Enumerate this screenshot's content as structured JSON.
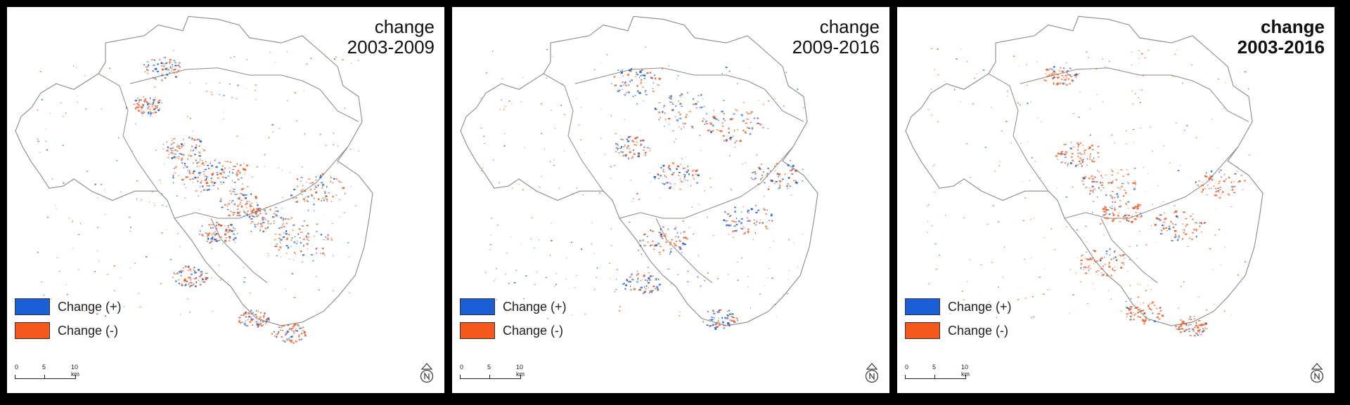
{
  "panels": [
    {
      "title_line1": "change",
      "title_line2": "2003-2009",
      "bold": false,
      "legend": [
        {
          "label": "Change (+)",
          "color": "#1a5fd6"
        },
        {
          "label": "Change (-)",
          "color": "#f4581d"
        }
      ],
      "scale": {
        "t0": "0",
        "t5": "5",
        "t10": "10 km"
      }
    },
    {
      "title_line1": "change",
      "title_line2": "2009-2016",
      "bold": false,
      "legend": [
        {
          "label": "Change (+)",
          "color": "#1a5fd6"
        },
        {
          "label": "Change (-)",
          "color": "#f4581d"
        }
      ],
      "scale": {
        "t0": "0",
        "t5": "5",
        "t10": "10 km"
      }
    },
    {
      "title_line1": "change",
      "title_line2": "2003-2016",
      "bold": true,
      "legend": [
        {
          "label": "Change (+)",
          "color": "#1a5fd6"
        },
        {
          "label": "Change (-)",
          "color": "#f4581d"
        }
      ],
      "scale": {
        "t0": "0",
        "t5": "5",
        "t10": "10 km"
      }
    }
  ],
  "colors": {
    "positive": "#1a5fd6",
    "negative": "#f4581d",
    "boundary": "#8a8a8a",
    "frame": "#000000"
  },
  "icons": {
    "north_arrow": "north-arrow-icon"
  }
}
